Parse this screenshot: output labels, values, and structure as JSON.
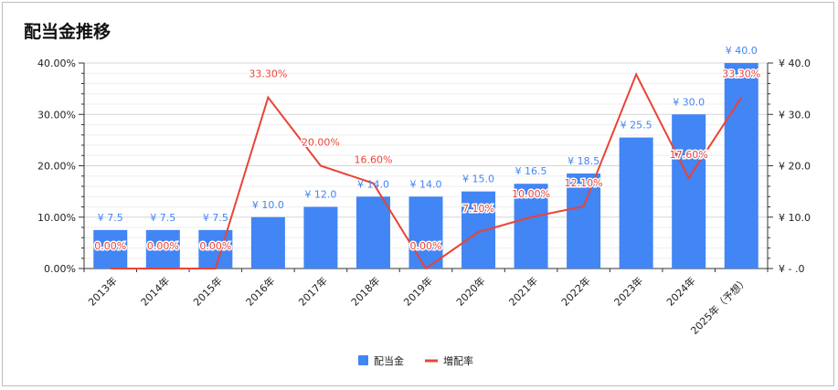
{
  "chart_data": {
    "type": "bar",
    "title": "配当金推移",
    "categories": [
      "2013年",
      "2014年",
      "2015年",
      "2016年",
      "2017年",
      "2018年",
      "2019年",
      "2020年",
      "2021年",
      "2022年",
      "2023年",
      "2024年",
      "2025年（予想）"
    ],
    "series": [
      {
        "name": "配当金",
        "type": "bar",
        "axis": "right",
        "color": "#4285f4",
        "values": [
          7.5,
          7.5,
          7.5,
          10.0,
          12.0,
          14.0,
          14.0,
          15.0,
          16.5,
          18.5,
          25.5,
          30.0,
          40.0
        ],
        "labels": [
          "¥ 7.5",
          "¥ 7.5",
          "¥ 7.5",
          "¥ 10.0",
          "¥ 12.0",
          "¥ 14.0",
          "¥ 14.0",
          "¥ 15.0",
          "¥ 16.5",
          "¥ 18.5",
          "¥ 25.5",
          "¥ 30.0",
          "¥ 40.0"
        ]
      },
      {
        "name": "増配率",
        "type": "line",
        "axis": "left",
        "color": "#ea4335",
        "values": [
          0.0,
          0.0,
          0.0,
          33.3,
          20.0,
          16.6,
          0.0,
          7.1,
          10.0,
          12.1,
          37.8,
          17.6,
          33.3
        ],
        "labels": [
          "0.00%",
          "0.00%",
          "0.00%",
          "33.30%",
          "20.00%",
          "16.60%",
          "0.00%",
          "7.10%",
          "10.00%",
          "12.10%",
          "",
          "17.60%",
          "33.30%"
        ]
      }
    ],
    "y_left": {
      "ylim": [
        0,
        40
      ],
      "tick_values": [
        0,
        10,
        20,
        30,
        40
      ],
      "tick_labels": [
        "0.00%",
        "10.00%",
        "20.00%",
        "30.00%",
        "40.00%"
      ]
    },
    "y_right": {
      "ylim": [
        0,
        40
      ],
      "tick_values": [
        0,
        10,
        20,
        30,
        40
      ],
      "tick_labels": [
        "¥ -  .0",
        "¥ 10.0",
        "¥ 20.0",
        "¥ 30.0",
        "¥ 40.0"
      ]
    },
    "grid": true,
    "legend": {
      "position": "bottom",
      "entries": [
        "配当金",
        "増配率"
      ]
    }
  }
}
